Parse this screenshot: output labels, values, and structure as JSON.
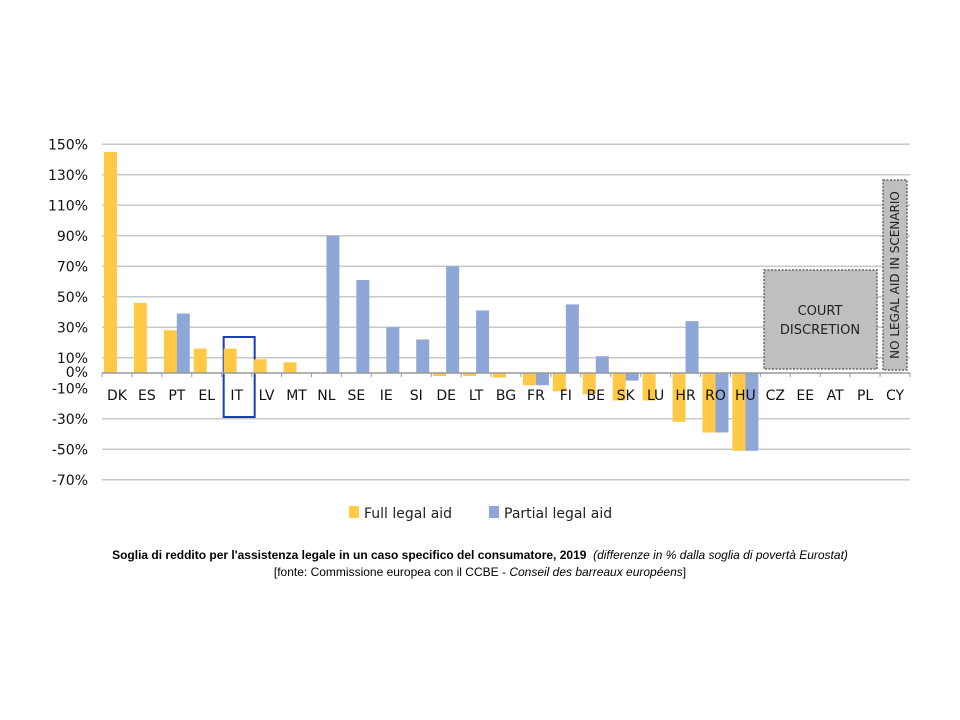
{
  "chart_data": {
    "type": "bar",
    "title": "",
    "xlabel": "",
    "ylabel": "",
    "ylim": [
      -70,
      150
    ],
    "yticks": [
      150,
      130,
      110,
      90,
      70,
      50,
      30,
      10,
      0,
      -10,
      -30,
      -50,
      -70
    ],
    "ytick_labels": [
      "150%",
      "130%",
      "110%",
      "90%",
      "70%",
      "50%",
      "30%",
      "10%",
      "0%",
      "-10%",
      "-30%",
      "-50%",
      "-70%"
    ],
    "categories": [
      "DK",
      "ES",
      "PT",
      "EL",
      "IT",
      "LV",
      "MT",
      "NL",
      "SE",
      "IE",
      "SI",
      "DE",
      "LT",
      "BG",
      "FR",
      "FI",
      "BE",
      "SK",
      "LU",
      "HR",
      "RO",
      "HU",
      "CZ",
      "EE",
      "AT",
      "PL",
      "CY"
    ],
    "series": [
      {
        "name": "Full legal aid",
        "color": "#FFC845",
        "values": [
          145,
          46,
          28,
          16,
          16,
          9,
          7,
          null,
          null,
          null,
          null,
          -2,
          -2,
          -3,
          -8,
          -12,
          -14,
          -18,
          -18,
          -32,
          -39,
          -51,
          null,
          null,
          null,
          null,
          null
        ]
      },
      {
        "name": "Partial legal aid",
        "color": "#8FA7D6",
        "values": [
          null,
          null,
          39,
          null,
          null,
          null,
          null,
          90,
          61,
          30,
          22,
          70,
          41,
          null,
          -8,
          45,
          11,
          -5,
          null,
          34,
          -39,
          -51,
          null,
          null,
          null,
          null,
          null
        ]
      }
    ],
    "highlighted_category": "IT",
    "highlight_color": "#1A3DB5",
    "legend": "bottom",
    "grid": true,
    "annotations": {
      "court_discretion": {
        "label_line1": "COURT",
        "label_line2": "DISCRETION",
        "categories": [
          "CZ",
          "EE",
          "AT",
          "PL"
        ]
      },
      "no_legal_aid": {
        "label": "NO LEGAL AID IN SCENARIO",
        "categories": [
          "CY"
        ]
      }
    }
  },
  "caption": {
    "line1_bold": "Soglia di reddito per l'assistenza legale in un caso specifico del consumatore, 2019",
    "line1_italic": "(differenze in % dalla soglia di povertà Eurostat)",
    "line2_prefix": "[fonte: Commissione europea con il CCBE - ",
    "line2_italic": "Conseil des barreaux européens",
    "line2_suffix": "]"
  }
}
